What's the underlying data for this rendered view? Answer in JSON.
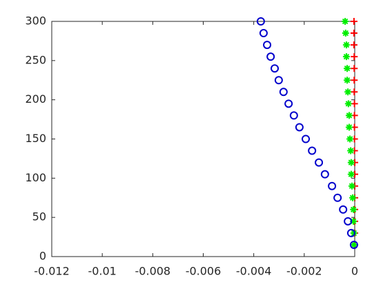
{
  "chart_data": {
    "type": "scatter",
    "y": [
      15,
      30,
      45,
      60,
      75,
      90,
      105,
      120,
      135,
      150,
      165,
      180,
      195,
      210,
      225,
      240,
      255,
      270,
      285,
      300
    ],
    "series": [
      {
        "color": "#ff0000",
        "marker": "+",
        "x": [
          0,
          0,
          0,
          0,
          0,
          0,
          0,
          0,
          -1e-05,
          -1e-05,
          -1e-05,
          -1e-05,
          -1e-05,
          -2e-05,
          -2e-05,
          -2e-05,
          -2e-05,
          -3e-05,
          -3e-05,
          -3e-05
        ]
      },
      {
        "color": "#00ee00",
        "marker": "*",
        "x": [
          -3e-05,
          -3e-05,
          -5e-05,
          -5e-05,
          -8e-05,
          -0.00011,
          -0.00014,
          -0.00014,
          -0.00016,
          -0.00019,
          -0.00022,
          -0.00022,
          -0.00025,
          -0.00027,
          -0.0003,
          -0.0003,
          -0.00033,
          -0.00033,
          -0.00036,
          -0.00038
        ]
      },
      {
        "color": "#0000cc",
        "marker": "o",
        "x": [
          -3e-05,
          -0.00014,
          -0.00027,
          -0.00046,
          -0.00068,
          -0.0009,
          -0.00118,
          -0.00142,
          -0.00169,
          -0.00194,
          -0.00219,
          -0.00241,
          -0.00262,
          -0.00282,
          -0.00301,
          -0.00317,
          -0.00333,
          -0.00347,
          -0.00361,
          -0.00372
        ]
      }
    ],
    "xlim": [
      -0.012,
      0
    ],
    "xticks": [
      -0.012,
      -0.01,
      -0.008,
      -0.006,
      -0.004,
      -0.002,
      0
    ],
    "ylim": [
      0,
      300
    ],
    "yticks": [
      0,
      50,
      100,
      150,
      200,
      250,
      300
    ],
    "box": true
  }
}
